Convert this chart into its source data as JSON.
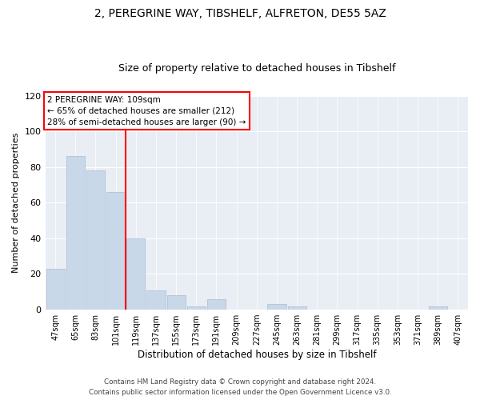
{
  "title": "2, PEREGRINE WAY, TIBSHELF, ALFRETON, DE55 5AZ",
  "subtitle": "Size of property relative to detached houses in Tibshelf",
  "xlabel": "Distribution of detached houses by size in Tibshelf",
  "ylabel": "Number of detached properties",
  "bar_labels": [
    "47sqm",
    "65sqm",
    "83sqm",
    "101sqm",
    "119sqm",
    "137sqm",
    "155sqm",
    "173sqm",
    "191sqm",
    "209sqm",
    "227sqm",
    "245sqm",
    "263sqm",
    "281sqm",
    "299sqm",
    "317sqm",
    "335sqm",
    "353sqm",
    "371sqm",
    "389sqm",
    "407sqm"
  ],
  "bar_values": [
    23,
    86,
    78,
    66,
    40,
    11,
    8,
    2,
    6,
    0,
    0,
    3,
    2,
    0,
    0,
    0,
    0,
    0,
    0,
    2,
    0
  ],
  "bar_color": "#c8d8e8",
  "bar_edge_color": "#aabcce",
  "vline_x": 3.5,
  "vline_color": "red",
  "annotation_title": "2 PEREGRINE WAY: 109sqm",
  "annotation_line1": "← 65% of detached houses are smaller (212)",
  "annotation_line2": "28% of semi-detached houses are larger (90) →",
  "annotation_box_color": "white",
  "annotation_box_edge": "red",
  "ylim": [
    0,
    120
  ],
  "yticks": [
    0,
    20,
    40,
    60,
    80,
    100,
    120
  ],
  "footer1": "Contains HM Land Registry data © Crown copyright and database right 2024.",
  "footer2": "Contains public sector information licensed under the Open Government Licence v3.0.",
  "background_color": "#e8eef4"
}
